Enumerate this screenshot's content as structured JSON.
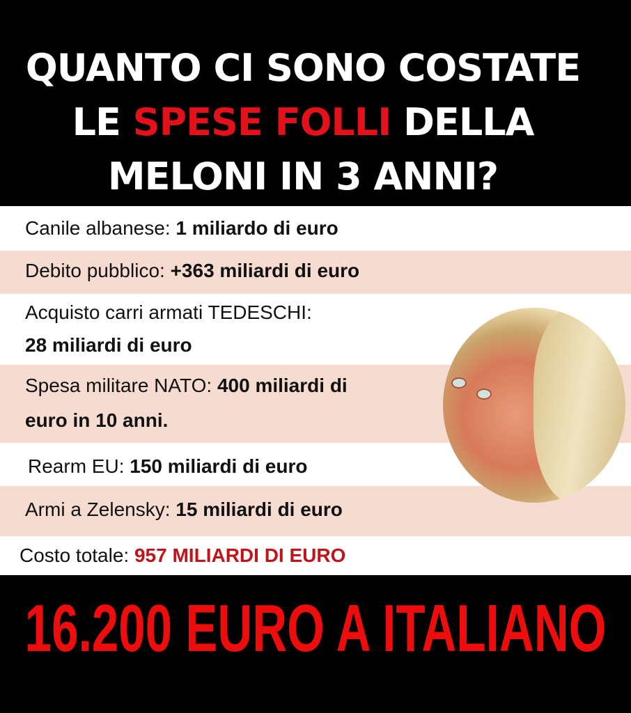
{
  "title": {
    "line1": "QUANTO CI SONO COSTATE",
    "line2_pre": "LE ",
    "line2_highlight": "SPESE FOLLI",
    "line2_post": " DELLA",
    "line3": "MELONI IN 3 ANNI?"
  },
  "items": [
    {
      "label": "Canile albanese: ",
      "value": "1 miliardo di euro"
    },
    {
      "label": "Debito pubblico: ",
      "value": "+363 miliardi di euro"
    },
    {
      "label": "Acquisto carri armati TEDESCHI:",
      "value": "28 miliardi di euro"
    },
    {
      "label": "Spesa militare NATO: ",
      "value": "400 miliardi di",
      "value2": "euro in 10 anni."
    },
    {
      "label": "Rearm EU: ",
      "value": "150 miliardi di euro"
    },
    {
      "label": "Armi a Zelensky: ",
      "value": "15 miliardi di euro"
    }
  ],
  "total": {
    "label": "Costo totale: ",
    "value": "957 MILIARDI DI EURO"
  },
  "footer": "16.200 EURO A ITALIANO",
  "colors": {
    "accent": "#e3111a",
    "row_alt": "#f6dcd0",
    "total": "#c0141b"
  }
}
